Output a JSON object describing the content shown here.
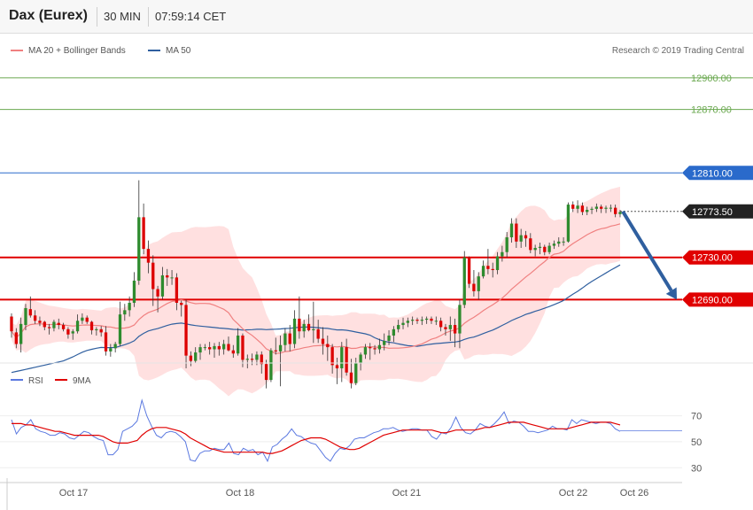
{
  "header": {
    "symbol": "Dax (Eurex)",
    "timeframe": "30 MIN",
    "time": "07:59:14 CET"
  },
  "legend": {
    "ma20": "MA 20 + Bollinger Bands",
    "ma50": "MA 50",
    "copyright": "Research © 2019 Trading Central",
    "ma20_color": "#f08080",
    "ma50_color": "#2f5f9f"
  },
  "rsi_legend": {
    "rsi": "RSI",
    "ma9": "9MA",
    "rsi_color": "#5a78e0",
    "ma9_color": "#e00000"
  },
  "colors": {
    "bull": "#2e8b2e",
    "bear": "#dd0000",
    "target": "#6aa84f",
    "resistance": "#e00000",
    "ma50_level": "#2a6acb",
    "arrow": "#2f5f9f",
    "current": "#222222"
  },
  "chart_data": [
    {
      "type": "candlestick",
      "ylim": [
        12630,
        12915
      ],
      "x_ticks": [
        "Oct 17",
        "Oct 18",
        "Oct 21",
        "Oct 22",
        "Oct 26"
      ],
      "levels": [
        {
          "label": "12900.00",
          "value": 12900,
          "style": "target"
        },
        {
          "label": "12870.00",
          "value": 12870,
          "style": "target"
        },
        {
          "label": "12810.00",
          "value": 12810,
          "style": "ma50_level"
        },
        {
          "label": "12773.50",
          "value": 12773.5,
          "style": "current"
        },
        {
          "label": "12730.00",
          "value": 12730,
          "style": "resistance"
        },
        {
          "label": "12690.00",
          "value": 12690,
          "style": "resistance"
        }
      ],
      "projection": {
        "from": 12773.5,
        "to": 12690
      },
      "candles": [
        [
          12674,
          12677,
          12654,
          12660
        ],
        [
          12659,
          12663,
          12644,
          12648
        ],
        [
          12648,
          12673,
          12640,
          12667
        ],
        [
          12666,
          12686,
          12661,
          12682
        ],
        [
          12681,
          12693,
          12673,
          12675
        ],
        [
          12675,
          12680,
          12667,
          12670
        ],
        [
          12670,
          12674,
          12665,
          12668
        ],
        [
          12669,
          12670,
          12661,
          12664
        ],
        [
          12664,
          12667,
          12657,
          12663
        ],
        [
          12663,
          12671,
          12660,
          12669
        ],
        [
          12668,
          12672,
          12662,
          12666
        ],
        [
          12666,
          12668,
          12660,
          12662
        ],
        [
          12662,
          12664,
          12653,
          12657
        ],
        [
          12658,
          12662,
          12652,
          12660
        ],
        [
          12660,
          12676,
          12658,
          12670
        ],
        [
          12670,
          12677,
          12667,
          12673
        ],
        [
          12673,
          12675,
          12667,
          12669
        ],
        [
          12669,
          12670,
          12657,
          12661
        ],
        [
          12661,
          12664,
          12656,
          12662
        ],
        [
          12662,
          12665,
          12655,
          12659
        ],
        [
          12659,
          12665,
          12637,
          12641
        ],
        [
          12641,
          12648,
          12636,
          12644
        ],
        [
          12644,
          12650,
          12640,
          12648
        ],
        [
          12648,
          12688,
          12646,
          12676
        ],
        [
          12676,
          12686,
          12670,
          12680
        ],
        [
          12680,
          12693,
          12674,
          12687
        ],
        [
          12687,
          12716,
          12683,
          12708
        ],
        [
          12708,
          12803,
          12704,
          12768
        ],
        [
          12768,
          12781,
          12733,
          12738
        ],
        [
          12738,
          12746,
          12715,
          12725
        ],
        [
          12725,
          12732,
          12684,
          12700
        ],
        [
          12700,
          12703,
          12678,
          12693
        ],
        [
          12693,
          12721,
          12690,
          12713
        ],
        [
          12713,
          12719,
          12703,
          12711
        ],
        [
          12711,
          12718,
          12704,
          12711
        ],
        [
          12711,
          12715,
          12680,
          12687
        ],
        [
          12687,
          12689,
          12674,
          12685
        ],
        [
          12685,
          12690,
          12625,
          12637
        ],
        [
          12637,
          12641,
          12627,
          12632
        ],
        [
          12632,
          12645,
          12630,
          12640
        ],
        [
          12640,
          12648,
          12633,
          12645
        ],
        [
          12645,
          12648,
          12642,
          12645
        ],
        [
          12645,
          12650,
          12638,
          12643
        ],
        [
          12643,
          12649,
          12635,
          12646
        ],
        [
          12646,
          12650,
          12637,
          12643
        ],
        [
          12643,
          12652,
          12638,
          12648
        ],
        [
          12648,
          12655,
          12641,
          12642
        ],
        [
          12642,
          12647,
          12635,
          12639
        ],
        [
          12639,
          12663,
          12637,
          12656
        ],
        [
          12656,
          12658,
          12626,
          12633
        ],
        [
          12633,
          12638,
          12625,
          12634
        ],
        [
          12634,
          12639,
          12628,
          12633
        ],
        [
          12633,
          12641,
          12628,
          12638
        ],
        [
          12638,
          12641,
          12620,
          12629
        ],
        [
          12629,
          12633,
          12606,
          12614
        ],
        [
          12614,
          12644,
          12612,
          12642
        ],
        [
          12642,
          12654,
          12638,
          12641
        ],
        [
          12641,
          12656,
          12608,
          12647
        ],
        [
          12647,
          12663,
          12641,
          12658
        ],
        [
          12658,
          12666,
          12641,
          12648
        ],
        [
          12648,
          12680,
          12644,
          12672
        ],
        [
          12672,
          12693,
          12653,
          12660
        ],
        [
          12660,
          12671,
          12654,
          12667
        ],
        [
          12667,
          12676,
          12660,
          12661
        ],
        [
          12661,
          12688,
          12649,
          12662
        ],
        [
          12662,
          12671,
          12649,
          12653
        ],
        [
          12653,
          12664,
          12638,
          12648
        ],
        [
          12648,
          12656,
          12632,
          12645
        ],
        [
          12645,
          12648,
          12620,
          12628
        ],
        [
          12628,
          12635,
          12610,
          12625
        ],
        [
          12625,
          12650,
          12612,
          12645
        ],
        [
          12645,
          12653,
          12618,
          12621
        ],
        [
          12621,
          12634,
          12606,
          12611
        ],
        [
          12611,
          12635,
          12609,
          12630
        ],
        [
          12630,
          12640,
          12623,
          12638
        ],
        [
          12638,
          12648,
          12634,
          12645
        ],
        [
          12645,
          12649,
          12633,
          12644
        ],
        [
          12644,
          12647,
          12638,
          12643
        ],
        [
          12643,
          12653,
          12639,
          12647
        ],
        [
          12647,
          12658,
          12642,
          12651
        ],
        [
          12651,
          12661,
          12647,
          12656
        ],
        [
          12656,
          12665,
          12650,
          12662
        ],
        [
          12662,
          12671,
          12659,
          12666
        ],
        [
          12666,
          12673,
          12662,
          12668
        ],
        [
          12668,
          12673,
          12664,
          12670
        ],
        [
          12670,
          12674,
          12666,
          12671
        ],
        [
          12671,
          12673,
          12667,
          12670
        ],
        [
          12670,
          12674,
          12666,
          12671
        ],
        [
          12671,
          12674,
          12667,
          12672
        ],
        [
          12672,
          12674,
          12667,
          12670
        ],
        [
          12670,
          12674,
          12666,
          12670
        ],
        [
          12670,
          12673,
          12660,
          12664
        ],
        [
          12664,
          12667,
          12656,
          12662
        ],
        [
          12662,
          12674,
          12651,
          12666
        ],
        [
          12666,
          12672,
          12645,
          12658
        ],
        [
          12658,
          12690,
          12644,
          12685
        ],
        [
          12685,
          12736,
          12682,
          12730
        ],
        [
          12730,
          12731,
          12701,
          12705
        ],
        [
          12705,
          12718,
          12693,
          12698
        ],
        [
          12698,
          12716,
          12690,
          12712
        ],
        [
          12712,
          12727,
          12710,
          12722
        ],
        [
          12722,
          12738,
          12714,
          12719
        ],
        [
          12719,
          12725,
          12711,
          12718
        ],
        [
          12718,
          12735,
          12714,
          12731
        ],
        [
          12731,
          12741,
          12726,
          12735
        ],
        [
          12735,
          12754,
          12730,
          12749
        ],
        [
          12749,
          12767,
          12744,
          12762
        ],
        [
          12762,
          12767,
          12739,
          12745
        ],
        [
          12745,
          12757,
          12739,
          12751
        ],
        [
          12751,
          12755,
          12740,
          12748
        ],
        [
          12748,
          12753,
          12734,
          12737
        ],
        [
          12737,
          12742,
          12731,
          12739
        ],
        [
          12739,
          12744,
          12733,
          12740
        ],
        [
          12740,
          12742,
          12732,
          12735
        ],
        [
          12735,
          12744,
          12733,
          12741
        ],
        [
          12741,
          12746,
          12738,
          12743
        ],
        [
          12743,
          12749,
          12740,
          12745
        ],
        [
          12745,
          12749,
          12741,
          12745
        ],
        [
          12745,
          12782,
          12744,
          12780
        ],
        [
          12780,
          12783,
          12773,
          12776
        ],
        [
          12776,
          12784,
          12772,
          12779
        ],
        [
          12779,
          12782,
          12770,
          12773
        ],
        [
          12773,
          12778,
          12770,
          12775
        ],
        [
          12775,
          12778,
          12771,
          12776
        ],
        [
          12776,
          12781,
          12773,
          12778
        ],
        [
          12778,
          12780,
          12772,
          12776
        ],
        [
          12776,
          12779,
          12772,
          12777
        ],
        [
          12777,
          12780,
          12773,
          12777
        ],
        [
          12777,
          12780,
          12768,
          12771
        ],
        [
          12771,
          12775,
          12768,
          12773
        ]
      ]
    },
    {
      "type": "line",
      "name": "RSI",
      "ylim": [
        22,
        82
      ],
      "y_ticks": [
        30,
        50,
        70
      ],
      "rsi": [
        67,
        56,
        61,
        63,
        67,
        60,
        58,
        57,
        55,
        55,
        57,
        56,
        53,
        52,
        55,
        58,
        57,
        54,
        52,
        51,
        40,
        40,
        44,
        58,
        60,
        62,
        66,
        82,
        70,
        62,
        55,
        53,
        57,
        58,
        57,
        54,
        50,
        36,
        35,
        41,
        43,
        43,
        45,
        44,
        44,
        49,
        41,
        40,
        45,
        43,
        44,
        40,
        42,
        35,
        46,
        48,
        52,
        55,
        60,
        55,
        54,
        51,
        49,
        48,
        43,
        38,
        35,
        41,
        45,
        44,
        47,
        52,
        53,
        53,
        55,
        57,
        58,
        60,
        60,
        61,
        59,
        58,
        59,
        60,
        60,
        59,
        59,
        54,
        52,
        57,
        56,
        61,
        69,
        61,
        57,
        56,
        59,
        64,
        62,
        61,
        64,
        68,
        73,
        64,
        66,
        65,
        62,
        58,
        58,
        57,
        58,
        59,
        62,
        60,
        60,
        59,
        67,
        64,
        67,
        66,
        65,
        64,
        65,
        65,
        64,
        60,
        58
      ],
      "ma9": [
        64,
        64,
        64,
        63,
        63,
        62,
        61,
        60,
        59,
        58,
        58,
        57,
        56,
        55,
        55,
        55,
        55,
        55,
        55,
        54,
        52,
        50,
        49,
        49,
        49,
        50,
        51,
        55,
        58,
        60,
        61,
        61,
        61,
        60,
        59,
        58,
        56,
        53,
        51,
        49,
        47,
        45,
        44,
        43,
        42,
        42,
        42,
        42,
        42,
        42,
        42,
        42,
        42,
        41,
        41,
        42,
        43,
        45,
        47,
        49,
        51,
        52,
        53,
        53,
        53,
        52,
        50,
        48,
        46,
        45,
        44,
        44,
        45,
        47,
        49,
        51,
        53,
        55,
        56,
        57,
        58,
        59,
        59,
        59,
        59,
        59,
        59,
        59,
        58,
        57,
        57,
        58,
        59,
        59,
        59,
        59,
        59,
        60,
        61,
        61,
        62,
        63,
        64,
        65,
        65,
        65,
        65,
        64,
        63,
        62,
        61,
        60,
        60,
        60,
        60,
        60,
        61,
        62,
        63,
        64,
        65,
        65,
        65,
        65,
        65,
        64,
        63
      ]
    }
  ]
}
